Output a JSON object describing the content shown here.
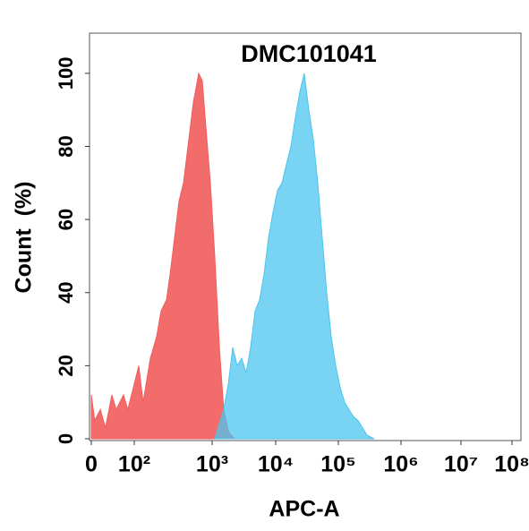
{
  "chart_data": {
    "type": "histogram-overlay",
    "title": "DMC101041",
    "x_label": "APC-A",
    "y_label": "Count  (%)",
    "xticks": [
      0,
      {
        "value": 100,
        "label": "10²"
      },
      {
        "value": 1000,
        "label": "10³"
      },
      {
        "value": 10000,
        "label": "10⁴"
      },
      {
        "value": 100000,
        "label": "10⁵"
      },
      {
        "value": 1000000,
        "label": "10⁶"
      },
      {
        "value": 10000000,
        "label": "10⁷"
      },
      {
        "value": 100000000,
        "label": "10⁸"
      }
    ],
    "xlim": [
      0,
      100000000
    ],
    "ylim": [
      0,
      111
    ],
    "yticks": [
      0,
      20,
      40,
      60,
      80,
      100
    ],
    "series": [
      {
        "color": "#f25c5c",
        "x": [
          0,
          8,
          21,
          33,
          48,
          58,
          75,
          85,
          100,
          114,
          130,
          161,
          194,
          221,
          259,
          288,
          329,
          376,
          429,
          490,
          574,
          673,
          748,
          832,
          948,
          1100,
          1300,
          1520,
          1800,
          2250
        ],
        "values": [
          12,
          5,
          8,
          3,
          12,
          8,
          12,
          8,
          15,
          20,
          10,
          22,
          28,
          35,
          38,
          45,
          55,
          65,
          70,
          80,
          92,
          100,
          98,
          85,
          70,
          50,
          25,
          8,
          2,
          0
        ]
      },
      {
        "color": "#4cc4ee",
        "x": [
          1100,
          1520,
          1800,
          2110,
          2480,
          2920,
          3430,
          4030,
          4750,
          5580,
          6560,
          7710,
          9070,
          10700,
          12600,
          14800,
          17500,
          20600,
          24300,
          28600,
          33800,
          39800,
          46900,
          55300,
          65200,
          76900,
          90600,
          107000,
          126000,
          148000,
          175000,
          206000,
          243000,
          286000,
          373000
        ],
        "values": [
          0,
          8,
          15,
          25,
          20,
          22,
          18,
          25,
          35,
          38,
          45,
          55,
          62,
          68,
          70,
          75,
          80,
          88,
          95,
          100,
          90,
          82,
          70,
          55,
          40,
          28,
          20,
          14,
          10,
          8,
          6,
          5,
          3,
          1,
          0
        ]
      }
    ]
  }
}
